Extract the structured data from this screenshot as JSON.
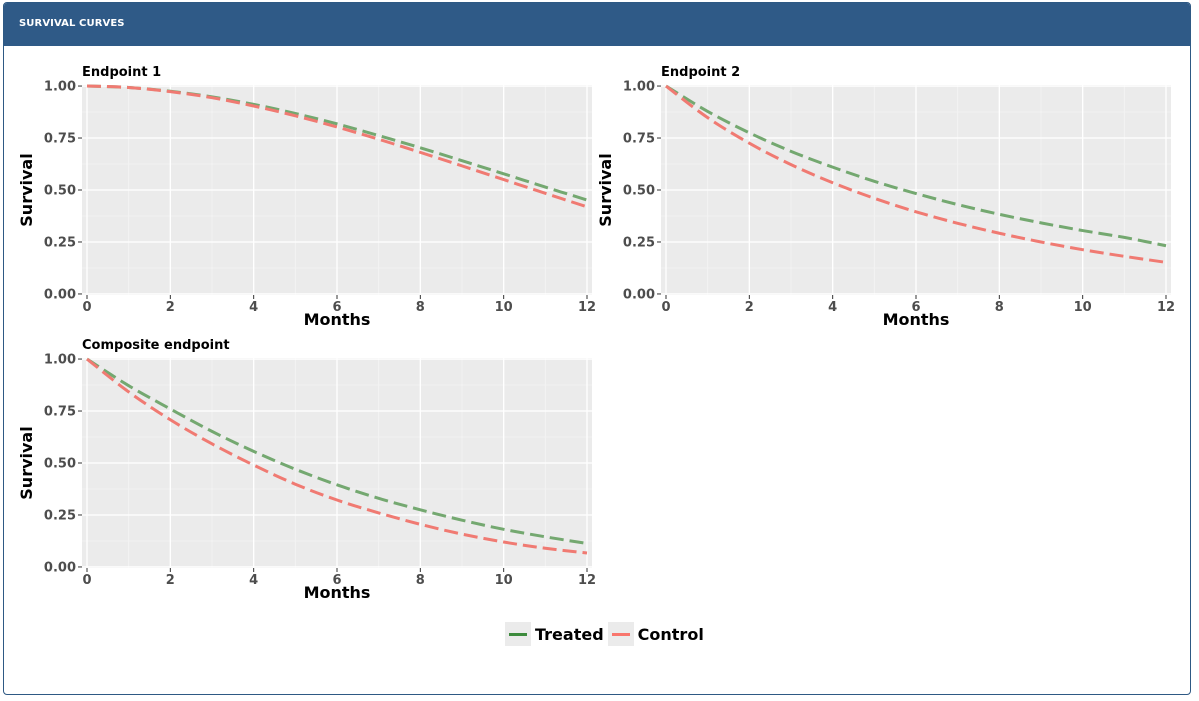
{
  "panel": {
    "title": "SURVIVAL CURVES"
  },
  "legend": {
    "items": [
      {
        "label": "Treated",
        "color": "#3d8b3d"
      },
      {
        "label": "Control",
        "color": "#f8766d"
      }
    ]
  },
  "chart_data": [
    {
      "type": "line",
      "title": "Endpoint 1",
      "xlabel": "Months",
      "ylabel": "Survival",
      "xlim": [
        0,
        12
      ],
      "ylim": [
        0,
        1
      ],
      "xticks": [
        "0",
        "2",
        "4",
        "6",
        "8",
        "10",
        "12"
      ],
      "yticks": [
        "0.00",
        "0.25",
        "0.50",
        "0.75",
        "1.00"
      ],
      "grid": true,
      "x": [
        0,
        1,
        2,
        3,
        4,
        5,
        6,
        7,
        8,
        9,
        10,
        11,
        12
      ],
      "series": [
        {
          "name": "Treated",
          "color": "#74a870",
          "values": [
            1.0,
            0.993,
            0.975,
            0.948,
            0.912,
            0.868,
            0.818,
            0.762,
            0.703,
            0.641,
            0.578,
            0.514,
            0.452
          ]
        },
        {
          "name": "Control",
          "color": "#f07a72",
          "values": [
            1.0,
            0.993,
            0.973,
            0.944,
            0.904,
            0.857,
            0.803,
            0.744,
            0.681,
            0.616,
            0.55,
            0.484,
            0.419
          ]
        }
      ]
    },
    {
      "type": "line",
      "title": "Endpoint 2",
      "xlabel": "Months",
      "ylabel": "Survival",
      "xlim": [
        0,
        12
      ],
      "ylim": [
        0,
        1
      ],
      "xticks": [
        "0",
        "2",
        "4",
        "6",
        "8",
        "10",
        "12"
      ],
      "yticks": [
        "0.00",
        "0.25",
        "0.50",
        "0.75",
        "1.00"
      ],
      "grid": true,
      "x": [
        0,
        1,
        2,
        3,
        4,
        5,
        6,
        7,
        8,
        9,
        10,
        11,
        12
      ],
      "series": [
        {
          "name": "Treated",
          "color": "#74a870",
          "values": [
            1.0,
            0.878,
            0.775,
            0.686,
            0.61,
            0.542,
            0.483,
            0.43,
            0.383,
            0.342,
            0.305,
            0.272,
            0.232
          ]
        },
        {
          "name": "Control",
          "color": "#f07a72",
          "values": [
            1.0,
            0.848,
            0.725,
            0.622,
            0.535,
            0.46,
            0.395,
            0.34,
            0.292,
            0.25,
            0.213,
            0.181,
            0.152
          ]
        }
      ]
    },
    {
      "type": "line",
      "title": "Composite endpoint",
      "xlabel": "Months",
      "ylabel": "Survival",
      "xlim": [
        0,
        12
      ],
      "ylim": [
        0,
        1
      ],
      "xticks": [
        "0",
        "2",
        "4",
        "6",
        "8",
        "10",
        "12"
      ],
      "yticks": [
        "0.00",
        "0.25",
        "0.50",
        "0.75",
        "1.00"
      ],
      "grid": true,
      "x": [
        0,
        1,
        2,
        3,
        4,
        5,
        6,
        7,
        8,
        9,
        10,
        11,
        12
      ],
      "series": [
        {
          "name": "Treated",
          "color": "#74a870",
          "values": [
            1.0,
            0.872,
            0.76,
            0.652,
            0.556,
            0.47,
            0.395,
            0.33,
            0.275,
            0.225,
            0.181,
            0.145,
            0.113
          ]
        },
        {
          "name": "Control",
          "color": "#f07a72",
          "values": [
            1.0,
            0.842,
            0.708,
            0.592,
            0.49,
            0.398,
            0.322,
            0.26,
            0.205,
            0.158,
            0.12,
            0.09,
            0.067
          ]
        }
      ]
    }
  ]
}
